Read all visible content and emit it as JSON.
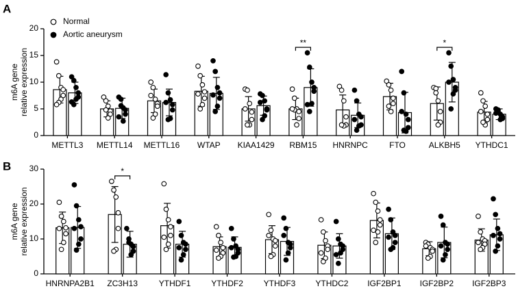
{
  "chart_data": [
    {
      "type": "bar",
      "panel": "A",
      "ylabel": [
        "m6A gene",
        "relative expression"
      ],
      "categories": [
        "METTL3",
        "METTL14",
        "METTL16",
        "WTAP",
        "KIAA1429",
        "RBM15",
        "HNRNPC",
        "FTO",
        "ALKBH5",
        "YTHDC1"
      ],
      "ylim": [
        0,
        20
      ],
      "yticks": [
        0,
        5,
        10,
        15,
        20
      ],
      "legend": "top-left",
      "series": [
        {
          "name": "Normal",
          "marker": "open",
          "color": "#000000",
          "values": [
            8.6,
            5.0,
            6.5,
            8.3,
            5.0,
            5.0,
            4.8,
            7.3,
            6.0,
            4.4
          ],
          "errors": [
            2.5,
            1.5,
            2.2,
            2.8,
            2.3,
            2.0,
            2.8,
            2.5,
            3.1,
            2.0
          ],
          "points": [
            [
              13.8,
              11.2,
              9.0,
              8.6,
              7.5,
              6.8,
              6.2,
              5.8
            ],
            [
              7.2,
              6.5,
              5.5,
              4.6,
              4.0,
              3.3,
              4.8
            ],
            [
              10.0,
              9.0,
              6.8,
              6.0,
              5.5,
              4.0,
              3.3,
              7.5
            ],
            [
              13.0,
              11.2,
              9.5,
              8.2,
              7.0,
              5.8,
              5.0,
              7.8
            ],
            [
              8.7,
              8.5,
              6.0,
              4.4,
              3.0,
              2.0,
              2.0,
              5.0
            ],
            [
              8.7,
              7.0,
              5.0,
              4.5,
              3.2,
              2.0,
              4.8,
              5.0
            ],
            [
              9.2,
              8.5,
              6.5,
              3.5,
              2.0,
              1.8,
              2.0
            ],
            [
              10.2,
              9.5,
              8.5,
              7.0,
              6.0,
              4.5,
              5.5
            ],
            [
              9.0,
              8.8,
              6.5,
              4.5,
              2.5,
              2.0,
              8.0
            ],
            [
              8.0,
              6.5,
              5.5,
              4.0,
              3.0,
              2.0,
              2.5,
              4.5
            ]
          ]
        },
        {
          "name": "Aortic aneurysm",
          "marker": "filled",
          "color": "#000000",
          "values": [
            8.0,
            5.1,
            6.2,
            7.9,
            5.6,
            9.0,
            3.8,
            4.3,
            10.0,
            4.0
          ],
          "errors": [
            2.0,
            1.9,
            2.5,
            3.0,
            1.8,
            3.5,
            2.3,
            3.8,
            3.7,
            1.0
          ],
          "points": [
            [
              11.0,
              10.3,
              9.0,
              8.0,
              7.2,
              6.8,
              5.8,
              6.3
            ],
            [
              7.2,
              6.8,
              5.2,
              4.8,
              4.0,
              2.7,
              5.6,
              3.5
            ],
            [
              11.4,
              8.0,
              6.7,
              5.8,
              4.8,
              3.2,
              3.0,
              6.2
            ],
            [
              14.0,
              12.0,
              9.0,
              8.0,
              7.0,
              5.5,
              4.5,
              7.6
            ],
            [
              7.8,
              7.5,
              6.5,
              5.0,
              4.8,
              3.7,
              3.0,
              6.2
            ],
            [
              15.5,
              12.8,
              10.0,
              9.0,
              8.3,
              6.0,
              4.5,
              5.8
            ],
            [
              8.5,
              6.5,
              4.0,
              3.5,
              2.0,
              1.8,
              1.0,
              3.0
            ],
            [
              12.0,
              8.0,
              4.0,
              3.0,
              1.5,
              0.8,
              1.0,
              4.5
            ],
            [
              15.5,
              13.0,
              10.5,
              9.0,
              8.5,
              7.8,
              5.0,
              10.0
            ],
            [
              5.0,
              4.5,
              4.0,
              3.5,
              3.2,
              3.0,
              4.8,
              4.2
            ]
          ]
        }
      ],
      "annotations": [
        {
          "text": "**",
          "category": "RBM15"
        },
        {
          "text": "*",
          "category": "ALKBH5"
        }
      ]
    },
    {
      "type": "bar",
      "panel": "B",
      "ylabel": [
        "m6A gene",
        "relative expression"
      ],
      "categories": [
        "HNRNPA2B1",
        "ZC3H13",
        "YTHDF1",
        "YTHDF2",
        "YTHDF3",
        "YTHDC2",
        "IGF2BP1",
        "IGF2BP2",
        "IGF2BP3"
      ],
      "ylim": [
        0,
        30
      ],
      "yticks": [
        0,
        10,
        20,
        30
      ],
      "series": [
        {
          "marker": "open",
          "color": "#000000",
          "values": [
            13.2,
            17.0,
            13.8,
            7.8,
            9.8,
            8.2,
            15.3,
            7.2,
            9.7
          ],
          "errors": [
            4.5,
            8.0,
            6.4,
            2.8,
            4.0,
            3.8,
            5.0,
            2.0,
            3.2
          ],
          "points": [
            [
              20.5,
              16.5,
              15.0,
              13.2,
              11.5,
              9.0,
              7.0,
              13.0
            ],
            [
              26.5,
              24.0,
              22.0,
              17.5,
              13.0,
              7.0,
              6.5
            ],
            [
              25.8,
              18.5,
              15.5,
              13.5,
              11.0,
              8.5,
              7.0,
              10.5
            ],
            [
              13.5,
              11.0,
              9.0,
              7.5,
              6.0,
              5.0,
              4.5,
              6.8
            ],
            [
              17.0,
              12.5,
              10.0,
              9.5,
              8.0,
              5.5,
              5.0,
              11.0
            ],
            [
              15.5,
              12.0,
              9.5,
              8.0,
              7.0,
              4.5,
              3.5,
              6.0
            ],
            [
              23.0,
              20.5,
              18.0,
              15.5,
              14.0,
              12.0,
              9.0,
              12.5
            ],
            [
              9.0,
              8.5,
              7.5,
              7.0,
              6.5,
              5.0,
              4.5,
              8.0
            ],
            [
              16.5,
              12.0,
              10.0,
              9.5,
              8.5,
              7.5,
              7.0,
              9.0
            ]
          ]
        },
        {
          "marker": "filled",
          "color": "#000000",
          "values": [
            13.3,
            8.5,
            8.5,
            7.6,
            9.3,
            8.0,
            11.5,
            9.0,
            11.2
          ],
          "errors": [
            6.0,
            3.7,
            3.7,
            3.0,
            4.0,
            3.5,
            4.5,
            4.4,
            4.5
          ],
          "points": [
            [
              25.5,
              19.5,
              15.5,
              13.5,
              10.0,
              8.5,
              6.8,
              13.0
            ],
            [
              13.0,
              10.0,
              8.5,
              7.8,
              6.5,
              5.5,
              9.0
            ],
            [
              15.0,
              11.0,
              9.0,
              8.5,
              7.0,
              5.5,
              4.0,
              7.5
            ],
            [
              13.0,
              10.0,
              8.0,
              7.0,
              6.0,
              5.0,
              4.8,
              7.5
            ],
            [
              16.0,
              13.0,
              9.0,
              8.5,
              7.5,
              6.0,
              4.0,
              11.0
            ],
            [
              15.0,
              10.0,
              8.5,
              8.0,
              7.0,
              6.0,
              3.0,
              5.5
            ],
            [
              18.5,
              15.5,
              12.0,
              11.0,
              9.0,
              7.5,
              7.0,
              10.5
            ],
            [
              16.5,
              14.0,
              9.0,
              8.5,
              7.0,
              5.5,
              4.0,
              8.0
            ],
            [
              21.5,
              17.0,
              13.0,
              11.5,
              10.0,
              8.0,
              6.5,
              11.0
            ]
          ]
        }
      ],
      "annotations": [
        {
          "text": "*",
          "category": "ZC3H13"
        }
      ]
    }
  ]
}
